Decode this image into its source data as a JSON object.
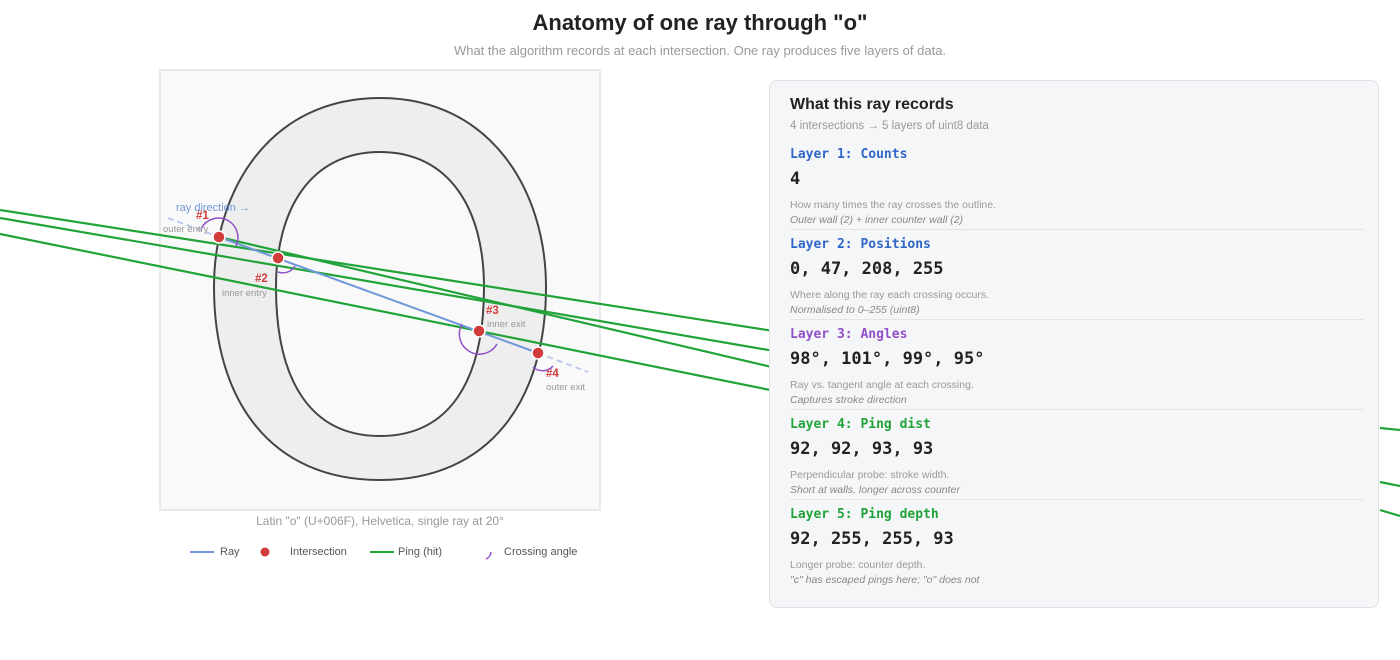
{
  "header": {
    "title": "Anatomy of one ray through \"o\"",
    "subtitle": "What the algorithm records at each intersection. One ray produces five layers of data."
  },
  "diagram": {
    "ray_direction_label": "ray direction →",
    "caption": "Latin \"o\" (U+006F), Helvetica, single ray at 20°",
    "intersections": [
      {
        "id": "#1",
        "label": "outer entry"
      },
      {
        "id": "#2",
        "label": "inner entry"
      },
      {
        "id": "#3",
        "label": "inner exit"
      },
      {
        "id": "#4",
        "label": "outer exit"
      }
    ],
    "colors": {
      "ray": "#6f97d9",
      "intersection": "#d13b3b",
      "ping": "#22a33a",
      "angle": "#9250c8",
      "glyph_fill": "#eeeeee",
      "glyph_stroke": "#444444"
    }
  },
  "legend": {
    "items": [
      {
        "label": "Ray",
        "icon": "line-icon"
      },
      {
        "label": "Intersection",
        "icon": "dot-icon"
      },
      {
        "label": "Ping (hit)",
        "icon": "line-icon"
      },
      {
        "label": "Crossing angle",
        "icon": "arc-icon"
      }
    ]
  },
  "panel": {
    "title": "What this ray records",
    "subtitle": "4 intersections → 5 layers of uint8 data",
    "layers": [
      {
        "title": "Layer 1: Counts",
        "value": "4",
        "desc": "How many times the ray crosses the outline.",
        "note": "Outer wall (2) + inner counter wall (2)",
        "color": "#2f66c9"
      },
      {
        "title": "Layer 2: Positions",
        "value": "0, 47, 208, 255",
        "desc": "Where along the ray each crossing occurs.",
        "note": "Normalised to 0–255 (uint8)",
        "color": "#2f66c9"
      },
      {
        "title": "Layer 3: Angles",
        "value": "98°, 101°, 99°, 95°",
        "desc": "Ray vs. tangent angle at each crossing.",
        "note": "Captures stroke direction",
        "color": "#9250c8"
      },
      {
        "title": "Layer 4: Ping dist",
        "value": "92, 92, 93, 93",
        "desc": "Perpendicular probe: stroke width.",
        "note": "Short at walls, longer across counter",
        "color": "#22a33a"
      },
      {
        "title": "Layer 5: Ping depth",
        "value": "92, 255, 255, 93",
        "desc": "Longer probe: counter depth.",
        "note": "\"c\" has escaped pings here; \"o\" does not",
        "color": "#22a33a"
      }
    ]
  }
}
